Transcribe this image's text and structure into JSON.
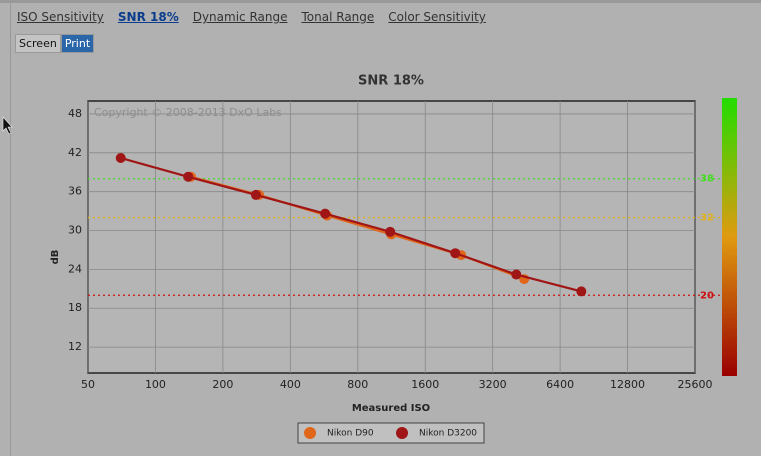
{
  "tabs": [
    "ISO Sensitivity",
    "SNR 18%",
    "Dynamic Range",
    "Tonal Range",
    "Color Sensitivity"
  ],
  "buttons": [
    "Screen",
    "Print"
  ],
  "chart_data": {
    "type": "line",
    "title": "SNR 18%",
    "watermark": "Copyright © 2008-2013 DxO Labs",
    "x_label": "Measured ISO",
    "y_label": "dB",
    "log_x": true,
    "grid": true,
    "legend": "bottom",
    "xlim": [
      50,
      25600
    ],
    "xticks": [
      50,
      100,
      200,
      400,
      800,
      1600,
      3200,
      6400,
      12800,
      25600
    ],
    "ylim": [
      8,
      50
    ],
    "yticks": [
      12,
      18,
      24,
      30,
      36,
      42,
      48
    ],
    "reference_lines": [
      {
        "value": 38,
        "color": "#44dd22"
      },
      {
        "value": 32,
        "color": "#e0b020"
      },
      {
        "value": 20,
        "color": "#cc1111"
      }
    ],
    "series": [
      {
        "name": "Nikon D90",
        "color": "#e0661a",
        "x": [
          144,
          290,
          584,
          1128,
          2316,
          4424
        ],
        "values": [
          38.3,
          35.5,
          32.3,
          29.4,
          26.2,
          22.5
        ]
      },
      {
        "name": "Nikon D3200",
        "color": "#a01515",
        "x": [
          70,
          140,
          281,
          572,
          1116,
          2179,
          4080,
          7960
        ],
        "values": [
          41.2,
          38.3,
          35.5,
          32.6,
          29.8,
          26.5,
          23.2,
          20.6
        ]
      }
    ]
  }
}
